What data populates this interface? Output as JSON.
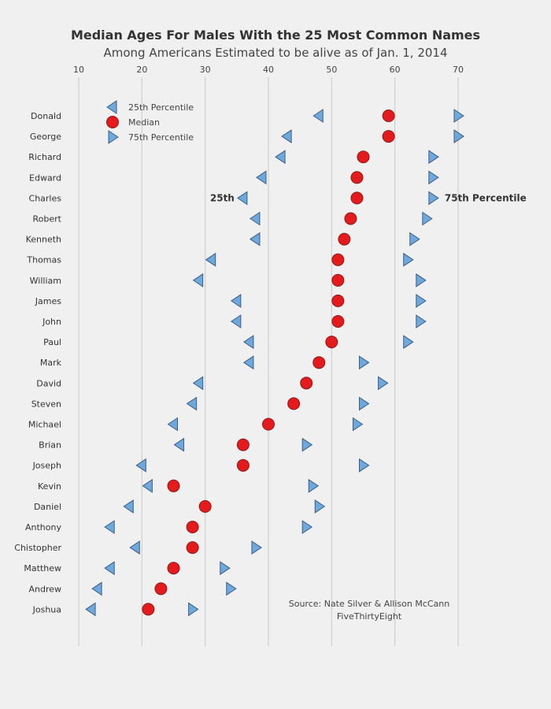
{
  "chart_data": {
    "type": "scatter",
    "title": "Median Ages For Males With the 25 Most Common Names",
    "subtitle": "Among Americans Estimated to be alive as of Jan. 1, 2014",
    "xlim": [
      10,
      70
    ],
    "xticks": [
      10,
      20,
      30,
      40,
      50,
      60,
      70
    ],
    "grid": true,
    "legend_position": "top-left",
    "legend": [
      {
        "name": "25th Percentile",
        "symbol": "triangle-left",
        "color": "#6fa8dc"
      },
      {
        "name": "Median",
        "symbol": "circle",
        "color": "#e41a1c"
      },
      {
        "name": "75th Percentile",
        "symbol": "triangle-right",
        "color": "#6fa8dc"
      }
    ],
    "categories": [
      "Donald",
      "George",
      "Richard",
      "Edward",
      "Charles",
      "Robert",
      "Kenneth",
      "Thomas",
      "William",
      "James",
      "John",
      "Paul",
      "Mark",
      "David",
      "Steven",
      "Michael",
      "Brian",
      "Joseph",
      "Kevin",
      "Daniel",
      "Anthony",
      "Chistopher",
      "Matthew",
      "Andrew",
      "Joshua"
    ],
    "series": [
      {
        "name": "25th Percentile",
        "values": [
          48,
          43,
          42,
          39,
          36,
          38,
          38,
          31,
          29,
          35,
          35,
          37,
          37,
          29,
          28,
          25,
          26,
          20,
          21,
          18,
          15,
          19,
          15,
          13,
          12
        ]
      },
      {
        "name": "Median",
        "values": [
          59,
          59,
          55,
          54,
          54,
          53,
          52,
          51,
          51,
          51,
          51,
          50,
          48,
          46,
          44,
          40,
          36,
          36,
          25,
          30,
          28,
          28,
          25,
          23,
          21
        ]
      },
      {
        "name": "75th Percentile",
        "values": [
          70,
          70,
          66,
          66,
          66,
          65,
          63,
          62,
          64,
          64,
          64,
          62,
          55,
          58,
          55,
          54,
          46,
          55,
          47,
          48,
          46,
          38,
          33,
          34,
          28
        ]
      }
    ],
    "annotations": [
      {
        "text": "25th",
        "category": "Charles",
        "series": "25th Percentile"
      },
      {
        "text": "75th Percentile",
        "category": "Charles",
        "series": "75th Percentile"
      }
    ],
    "source_lines": [
      "Source: Nate Silver & Allison McCann",
      "FiveThirtyEight"
    ]
  }
}
